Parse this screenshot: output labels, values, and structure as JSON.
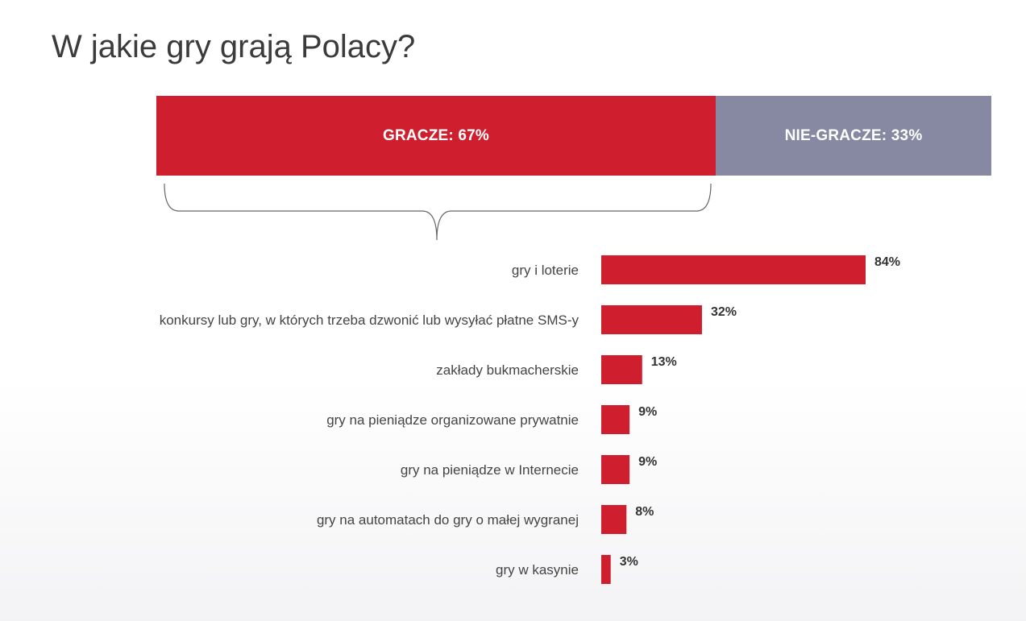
{
  "title": "W jakie gry grają Polacy?",
  "split": {
    "gracze_label": "GRACZE: 67%",
    "gracze_value": 67,
    "niegracze_label": "NIE-GRACZE: 33%",
    "niegracze_value": 33
  },
  "colors": {
    "primary_red": "#cf1f2e",
    "secondary_grey": "#8689a1",
    "text_dark": "#3b3b3b"
  },
  "chart_data": {
    "type": "bar",
    "orientation": "horizontal",
    "categories": [
      "gry i loterie",
      "konkursy lub gry, w których trzeba dzwonić lub wysyłać płatne SMS-y",
      "zakłady bukmacherskie",
      "gry na pieniądze organizowane prywatnie",
      "gry na pieniądze w Internecie",
      "gry na automatach do gry o małej wygranej",
      "gry w kasynie"
    ],
    "values": [
      84,
      32,
      13,
      9,
      9,
      8,
      3
    ],
    "value_labels": [
      "84%",
      "32%",
      "13%",
      "9%",
      "9%",
      "8%",
      "3%"
    ],
    "unit": "%",
    "xlim": [
      0,
      100
    ],
    "grid": false,
    "legend": "none"
  }
}
